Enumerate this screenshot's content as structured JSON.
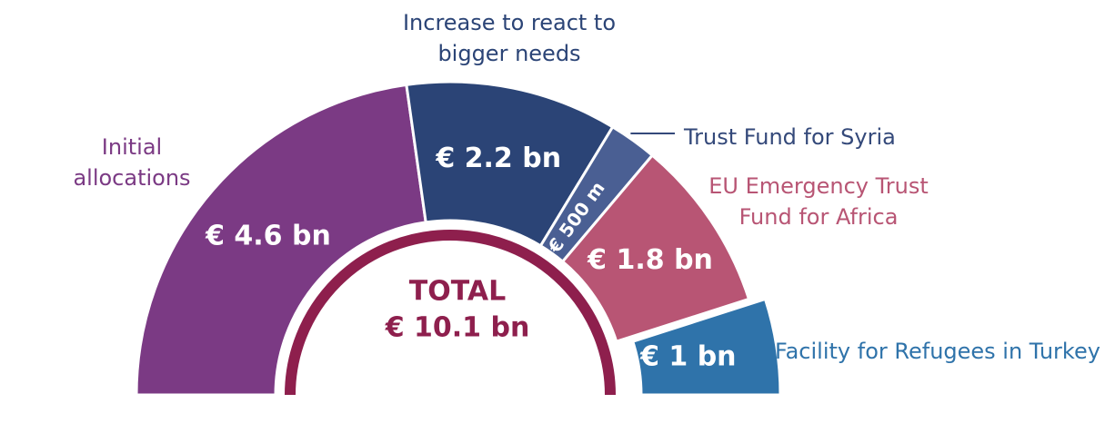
{
  "chart_data": {
    "type": "half-donut",
    "categories": [
      "Initial allocations",
      "Increase to react to bigger needs",
      "Trust Fund for Syria",
      "EU Emergency Trust Fund for Africa",
      "Facility for Refugees in Turkey"
    ],
    "values": [
      4.6,
      2.2,
      0.5,
      1.8,
      1
    ],
    "value_labels": [
      "€ 4.6 bn",
      "€ 2.2 bn",
      "€ 500 m",
      "€ 1.8 bn",
      "€ 1 bn"
    ],
    "colors": [
      "#7b3a84",
      "#2b4476",
      "#4a5f93",
      "#b85574",
      "#2f73aa"
    ],
    "total_title": "TOTAL",
    "total": 10.1,
    "total_label": "€ 10.1 bn",
    "total_color": "#8e1f4d"
  }
}
